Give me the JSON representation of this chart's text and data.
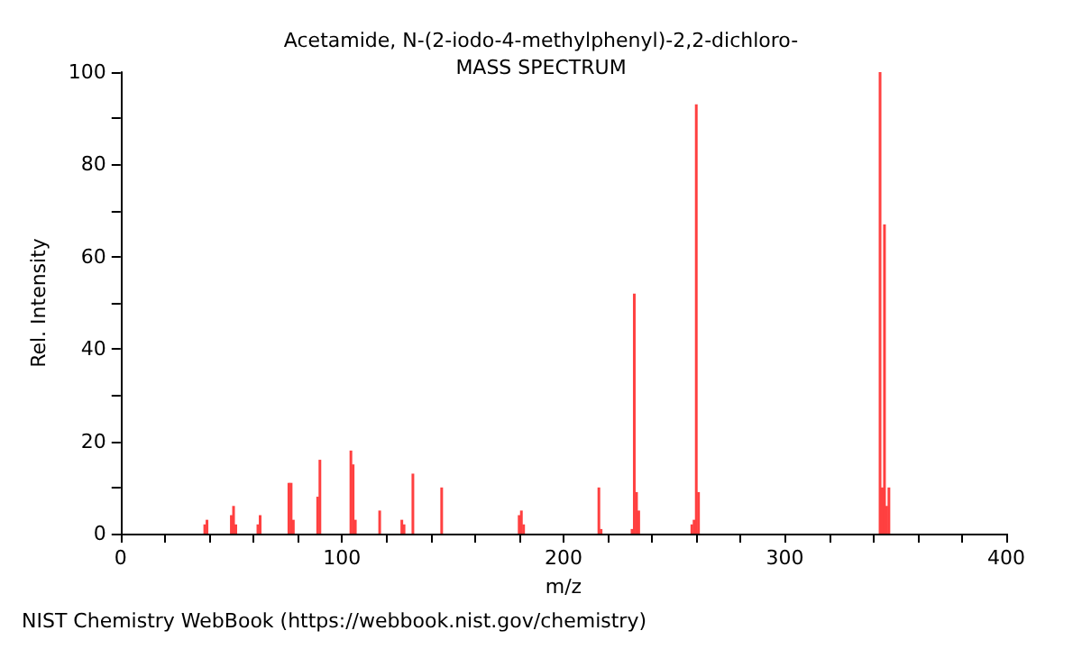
{
  "chart_data": {
    "type": "bar",
    "title": "Acetamide, N-(2-iodo-4-methylphenyl)-2,2-dichloro-",
    "subtitle": "MASS SPECTRUM",
    "xlabel": "m/z",
    "ylabel": "Rel. Intensity",
    "annotations": [
      "NIST Chemistry WebBook (https://webbook.nist.gov/chemistry)"
    ],
    "x": [
      38,
      39,
      50,
      51,
      52,
      62,
      63,
      76,
      77,
      78,
      89,
      90,
      104,
      105,
      106,
      117,
      127,
      128,
      132,
      145,
      180,
      181,
      182,
      216,
      217,
      231,
      232,
      233,
      234,
      258,
      259,
      260,
      261,
      343,
      344,
      345,
      346,
      347
    ],
    "values": [
      2,
      3,
      4,
      6,
      2,
      2,
      4,
      11,
      11,
      3,
      8,
      16,
      18,
      15,
      3,
      5,
      3,
      2,
      13,
      10,
      4,
      5,
      2,
      10,
      1,
      1,
      52,
      9,
      5,
      2,
      3,
      93,
      9,
      100,
      10,
      67,
      6,
      10
    ],
    "color": "#ff4040",
    "xlim": [
      0,
      400
    ],
    "xticks": [
      0,
      {
        "value": 20,
        "label": null
      },
      {
        "value": 40,
        "label": null
      },
      {
        "value": 60,
        "label": null
      },
      {
        "value": 80,
        "label": null
      },
      100,
      {
        "value": 120,
        "label": null
      },
      {
        "value": 140,
        "label": null
      },
      {
        "value": 160,
        "label": null
      },
      {
        "value": 180,
        "label": null
      },
      200,
      {
        "value": 220,
        "label": null
      },
      {
        "value": 240,
        "label": null
      },
      {
        "value": 260,
        "label": null
      },
      {
        "value": 280,
        "label": null
      },
      300,
      {
        "value": 320,
        "label": null
      },
      {
        "value": 340,
        "label": null
      },
      {
        "value": 360,
        "label": null
      },
      {
        "value": 380,
        "label": null
      },
      400
    ],
    "ylim": [
      0,
      100
    ],
    "yticks": [
      0,
      {
        "value": 10,
        "label": null
      },
      20,
      {
        "value": 30,
        "label": null
      },
      40,
      {
        "value": 50,
        "label": null
      },
      60,
      {
        "value": 70,
        "label": null
      },
      80,
      {
        "value": 90,
        "label": null
      },
      100
    ],
    "grid": false
  }
}
